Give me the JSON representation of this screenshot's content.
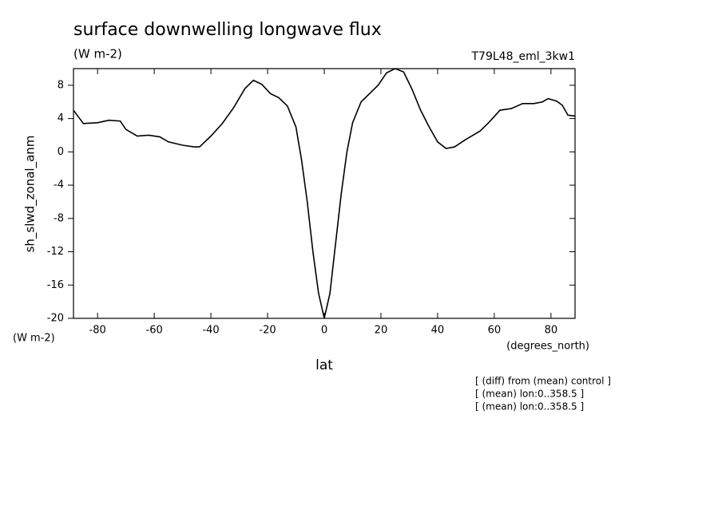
{
  "chart_data": {
    "type": "line",
    "title": "surface downwelling longwave flux",
    "subtitle": "(W m-2)",
    "run_label": "T79L48_eml_3kw1",
    "y_label": "sh_slwd_zonal_anm",
    "y_units": "(W m-2)",
    "x_label": "lat",
    "x_units": "(degrees_north)",
    "notes": [
      "[ (diff) from (mean) control ]",
      "[ (mean) lon:0..358.5 ]",
      "[ (mean) lon:0..358.5 ]"
    ],
    "color": "#000000",
    "x": [
      -88.5,
      -85,
      -80,
      -76,
      -72,
      -70,
      -66,
      -62,
      -58,
      -55,
      -50,
      -46,
      -44,
      -40,
      -36,
      -32,
      -28,
      -25,
      -22,
      -19,
      -16,
      -13,
      -10,
      -8,
      -6,
      -4,
      -2,
      0,
      2,
      4,
      6,
      8,
      10,
      13,
      16,
      19,
      22,
      25,
      28,
      31,
      34,
      37,
      40,
      43,
      46,
      50,
      55,
      58,
      62,
      66,
      70,
      74,
      77,
      79,
      82,
      84,
      86,
      88.5
    ],
    "values": [
      5.0,
      3.4,
      3.5,
      3.8,
      3.7,
      2.7,
      1.9,
      2.0,
      1.8,
      1.2,
      0.8,
      0.6,
      0.6,
      1.9,
      3.4,
      5.3,
      7.6,
      8.6,
      8.1,
      7.0,
      6.5,
      5.5,
      3.0,
      -1,
      -6,
      -12,
      -17,
      -20,
      -17,
      -11,
      -5,
      0,
      3.5,
      6,
      7,
      8,
      9.5,
      10,
      9.6,
      7.5,
      5,
      3,
      1.2,
      0.4,
      0.6,
      1.5,
      2.5,
      3.5,
      5,
      5.2,
      5.8,
      5.8,
      6,
      6.4,
      6.1,
      5.6,
      4.4,
      4.3
    ],
    "xlim": [
      -88.5,
      88.5
    ],
    "ylim": [
      -20,
      10
    ],
    "xticks": [
      -80,
      -60,
      -40,
      -20,
      0,
      20,
      40,
      60,
      80
    ],
    "yticks": [
      -20,
      -16,
      -12,
      -8,
      -4,
      0,
      4,
      8
    ]
  }
}
